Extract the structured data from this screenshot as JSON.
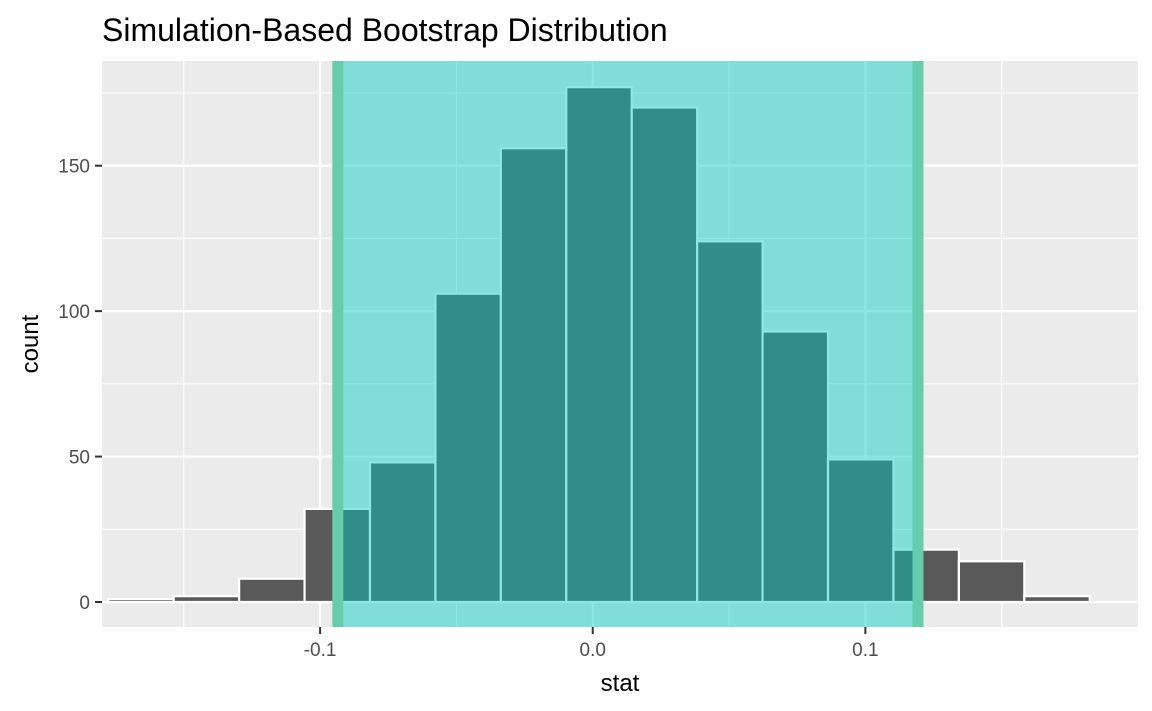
{
  "chart_data": {
    "type": "bar",
    "title": "Simulation-Based Bootstrap Distribution",
    "xlabel": "stat",
    "ylabel": "count",
    "xlim": [
      -0.18,
      0.2
    ],
    "ylim": [
      -8.6,
      186
    ],
    "x_ticks": [
      {
        "value": -0.1,
        "label": "-0.1"
      },
      {
        "value": 0.0,
        "label": "0.0"
      },
      {
        "value": 0.1,
        "label": "0.1"
      }
    ],
    "y_ticks": [
      {
        "value": 0,
        "label": "0"
      },
      {
        "value": 50,
        "label": "50"
      },
      {
        "value": 100,
        "label": "100"
      },
      {
        "value": 150,
        "label": "150"
      }
    ],
    "bins": [
      {
        "x0": -0.1777,
        "x1": -0.1537,
        "count": 1
      },
      {
        "x0": -0.1537,
        "x1": -0.1297,
        "count": 2
      },
      {
        "x0": -0.1297,
        "x1": -0.1057,
        "count": 8
      },
      {
        "x0": -0.1057,
        "x1": -0.0817,
        "count": 32
      },
      {
        "x0": -0.0817,
        "x1": -0.0577,
        "count": 48
      },
      {
        "x0": -0.0577,
        "x1": -0.0337,
        "count": 106
      },
      {
        "x0": -0.0337,
        "x1": -0.0097,
        "count": 156
      },
      {
        "x0": -0.0097,
        "x1": 0.0143,
        "count": 177
      },
      {
        "x0": 0.0143,
        "x1": 0.0383,
        "count": 170
      },
      {
        "x0": 0.0383,
        "x1": 0.0623,
        "count": 124
      },
      {
        "x0": 0.0623,
        "x1": 0.0863,
        "count": 93
      },
      {
        "x0": 0.0863,
        "x1": 0.1103,
        "count": 49
      },
      {
        "x0": 0.1103,
        "x1": 0.1343,
        "count": 18
      },
      {
        "x0": 0.1343,
        "x1": 0.1583,
        "count": 14
      },
      {
        "x0": 0.1583,
        "x1": 0.1823,
        "count": 2
      }
    ],
    "confidence_interval": {
      "lower": -0.0935,
      "upper": 0.1193
    },
    "colors": {
      "panel_background": "#ebebeb",
      "grid_line": "#ffffff",
      "bar_fill": "#595959",
      "bar_outline": "#ffffff",
      "shade_fill": "#00cdbe",
      "shade_opacity": 0.45,
      "endpoint_line": "#66cdaa",
      "tick_mark": "#333333",
      "tick_label": "#4d4d4d",
      "text": "#000000"
    }
  }
}
